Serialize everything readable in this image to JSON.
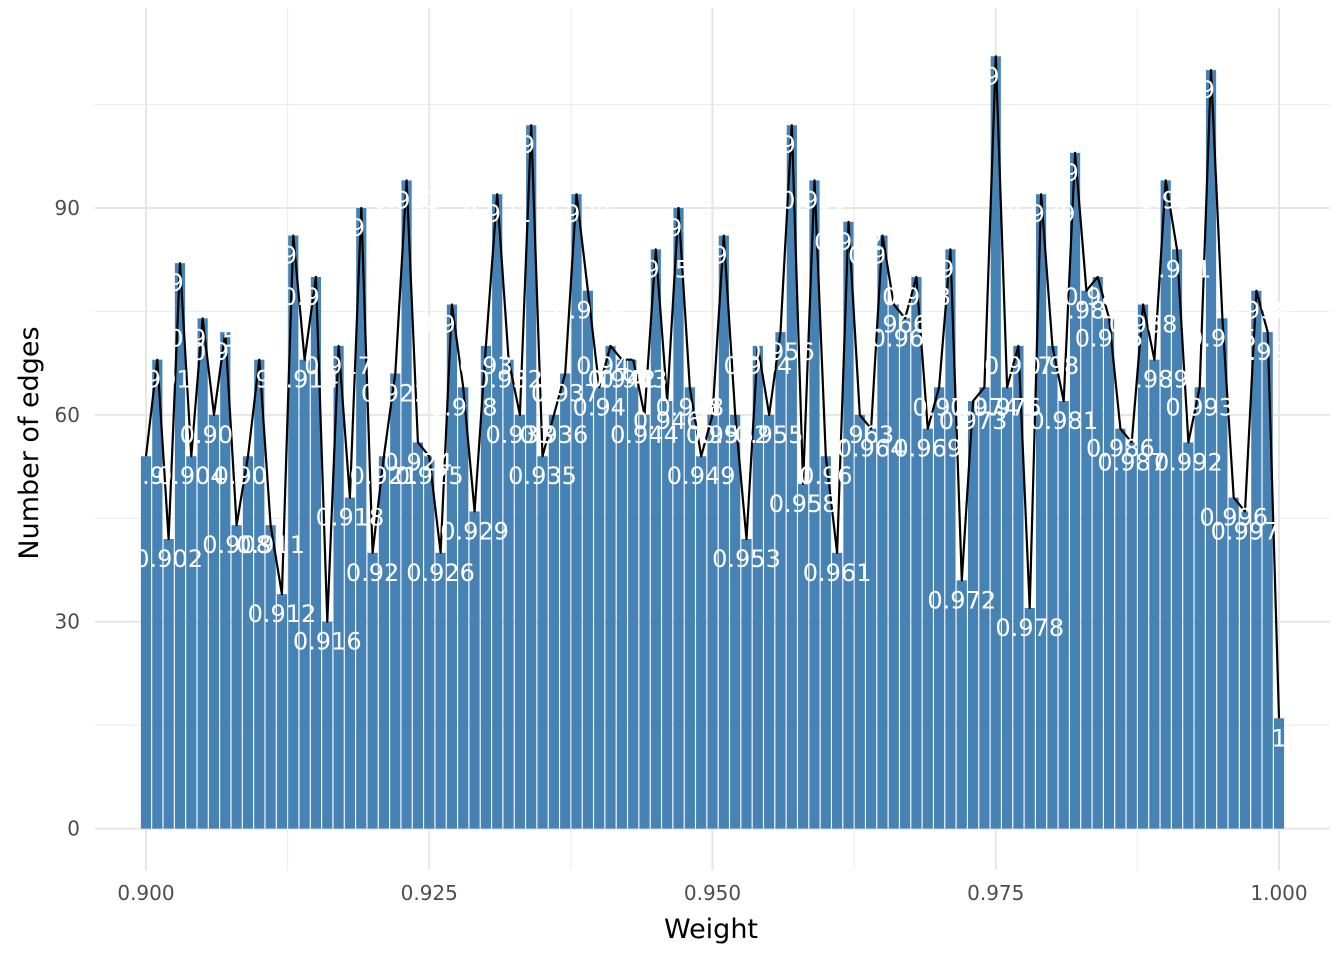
{
  "chart_data": {
    "type": "bar",
    "title": "",
    "xlabel": "Weight",
    "ylabel": "Number of edges",
    "xlim": [
      0.8955,
      1.0045
    ],
    "ylim": [
      -6,
      119
    ],
    "x_ticks": [
      0.9,
      0.925,
      0.95,
      0.975,
      1.0
    ],
    "x_tick_labels": [
      "0.900",
      "0.925",
      "0.950",
      "0.975",
      "1.000"
    ],
    "y_ticks": [
      0,
      30,
      60,
      90
    ],
    "y_tick_labels": [
      "0",
      "30",
      "60",
      "90"
    ],
    "grid": true,
    "bar_color": "#4682b4",
    "line_color": "#000000",
    "label_color": "#ffffff",
    "overlay": "line through bar tops",
    "x": [
      0.9,
      0.901,
      0.902,
      0.903,
      0.904,
      0.905,
      0.906,
      0.907,
      0.908,
      0.909,
      0.91,
      0.911,
      0.912,
      0.913,
      0.914,
      0.915,
      0.916,
      0.917,
      0.918,
      0.919,
      0.92,
      0.921,
      0.922,
      0.923,
      0.924,
      0.925,
      0.926,
      0.927,
      0.928,
      0.929,
      0.93,
      0.931,
      0.932,
      0.933,
      0.934,
      0.935,
      0.936,
      0.937,
      0.938,
      0.939,
      0.94,
      0.941,
      0.942,
      0.943,
      0.944,
      0.945,
      0.946,
      0.947,
      0.948,
      0.949,
      0.95,
      0.951,
      0.952,
      0.953,
      0.954,
      0.955,
      0.956,
      0.957,
      0.958,
      0.959,
      0.96,
      0.961,
      0.962,
      0.963,
      0.964,
      0.965,
      0.966,
      0.967,
      0.968,
      0.969,
      0.97,
      0.971,
      0.972,
      0.973,
      0.974,
      0.975,
      0.976,
      0.977,
      0.978,
      0.979,
      0.98,
      0.981,
      0.982,
      0.983,
      0.984,
      0.985,
      0.986,
      0.987,
      0.988,
      0.989,
      0.99,
      0.991,
      0.992,
      0.993,
      0.994,
      0.995,
      0.996,
      0.997,
      0.998,
      0.999,
      1.0
    ],
    "values": [
      54,
      68,
      42,
      82,
      54,
      74,
      60,
      72,
      44,
      54,
      68,
      44,
      34,
      86,
      68,
      80,
      30,
      70,
      48,
      90,
      40,
      54,
      66,
      94,
      56,
      54,
      40,
      76,
      64,
      46,
      70,
      92,
      68,
      60,
      102,
      54,
      60,
      66,
      92,
      78,
      64,
      70,
      68,
      68,
      60,
      84,
      62,
      90,
      64,
      54,
      60,
      86,
      60,
      42,
      70,
      60,
      72,
      102,
      50,
      94,
      54,
      40,
      88,
      60,
      58,
      86,
      76,
      74,
      80,
      58,
      64,
      84,
      36,
      62,
      64,
      112,
      64,
      70,
      32,
      92,
      70,
      62,
      98,
      78,
      80,
      74,
      58,
      56,
      76,
      68,
      94,
      84,
      56,
      64,
      110,
      74,
      48,
      46,
      78,
      72,
      16
    ],
    "labels": [
      "0.9",
      "0.901",
      "0.902",
      "0.903",
      "0.904",
      "0.905",
      "0.906",
      "0.907",
      "0.908",
      "0.909",
      "0.91",
      "0.911",
      "0.912",
      "0.913",
      "0.914",
      "0.915",
      "0.916",
      "0.917",
      "0.918",
      "0.919",
      "0.92",
      "0.921",
      "0.922",
      "0.923",
      "0.924",
      "0.925",
      "0.926",
      "0.927",
      "0.928",
      "0.929",
      "0.93",
      "0.931",
      "0.932",
      "0.933",
      "0.934",
      "0.935",
      "0.936",
      "0.937",
      "0.938",
      "0.939",
      "0.94",
      "0.941",
      "0.942",
      "0.943",
      "0.944",
      "0.945",
      "0.946",
      "0.947",
      "0.948",
      "0.949",
      "0.95",
      "0.951",
      "0.952",
      "0.953",
      "0.954",
      "0.955",
      "0.956",
      "0.957",
      "0.958",
      "0.959",
      "0.96",
      "0.961",
      "0.962",
      "0.963",
      "0.964",
      "0.965",
      "0.966",
      "0.967",
      "0.968",
      "0.969",
      "0.97",
      "0.971",
      "0.972",
      "0.973",
      "0.974",
      "0.975",
      "0.976",
      "0.977",
      "0.978",
      "0.979",
      "0.98",
      "0.981",
      "0.982",
      "0.983",
      "0.984",
      "0.985",
      "0.986",
      "0.987",
      "0.988",
      "0.989",
      "0.99",
      "0.991",
      "0.992",
      "0.993",
      "0.994",
      "0.995",
      "0.996",
      "0.997",
      "0.998",
      "0.999",
      "1"
    ]
  }
}
